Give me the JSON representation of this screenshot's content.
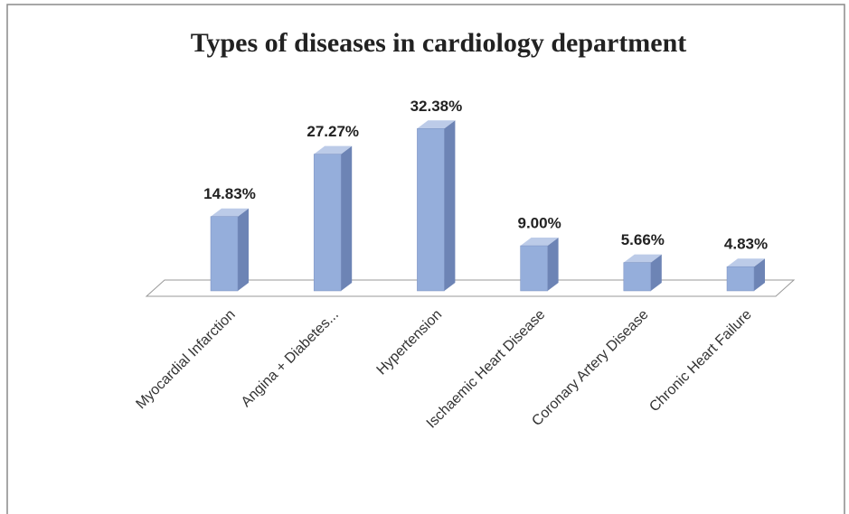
{
  "chart_data": {
    "type": "bar3d",
    "title": "Types of diseases in cardiology department",
    "categories": [
      "Myocardial Infarction",
      "Angina + Diabetes...",
      "Hypertension",
      "Ischaemic Heart Disease",
      "Coronary Artery Disease",
      "Chronic Heart Failure"
    ],
    "values": [
      14.83,
      27.27,
      32.38,
      9.0,
      5.66,
      4.83
    ],
    "value_labels": [
      "14.83%",
      "27.27%",
      "32.38%",
      "9.00%",
      "5.66%",
      "4.83%"
    ],
    "color": "#95aedb"
  }
}
